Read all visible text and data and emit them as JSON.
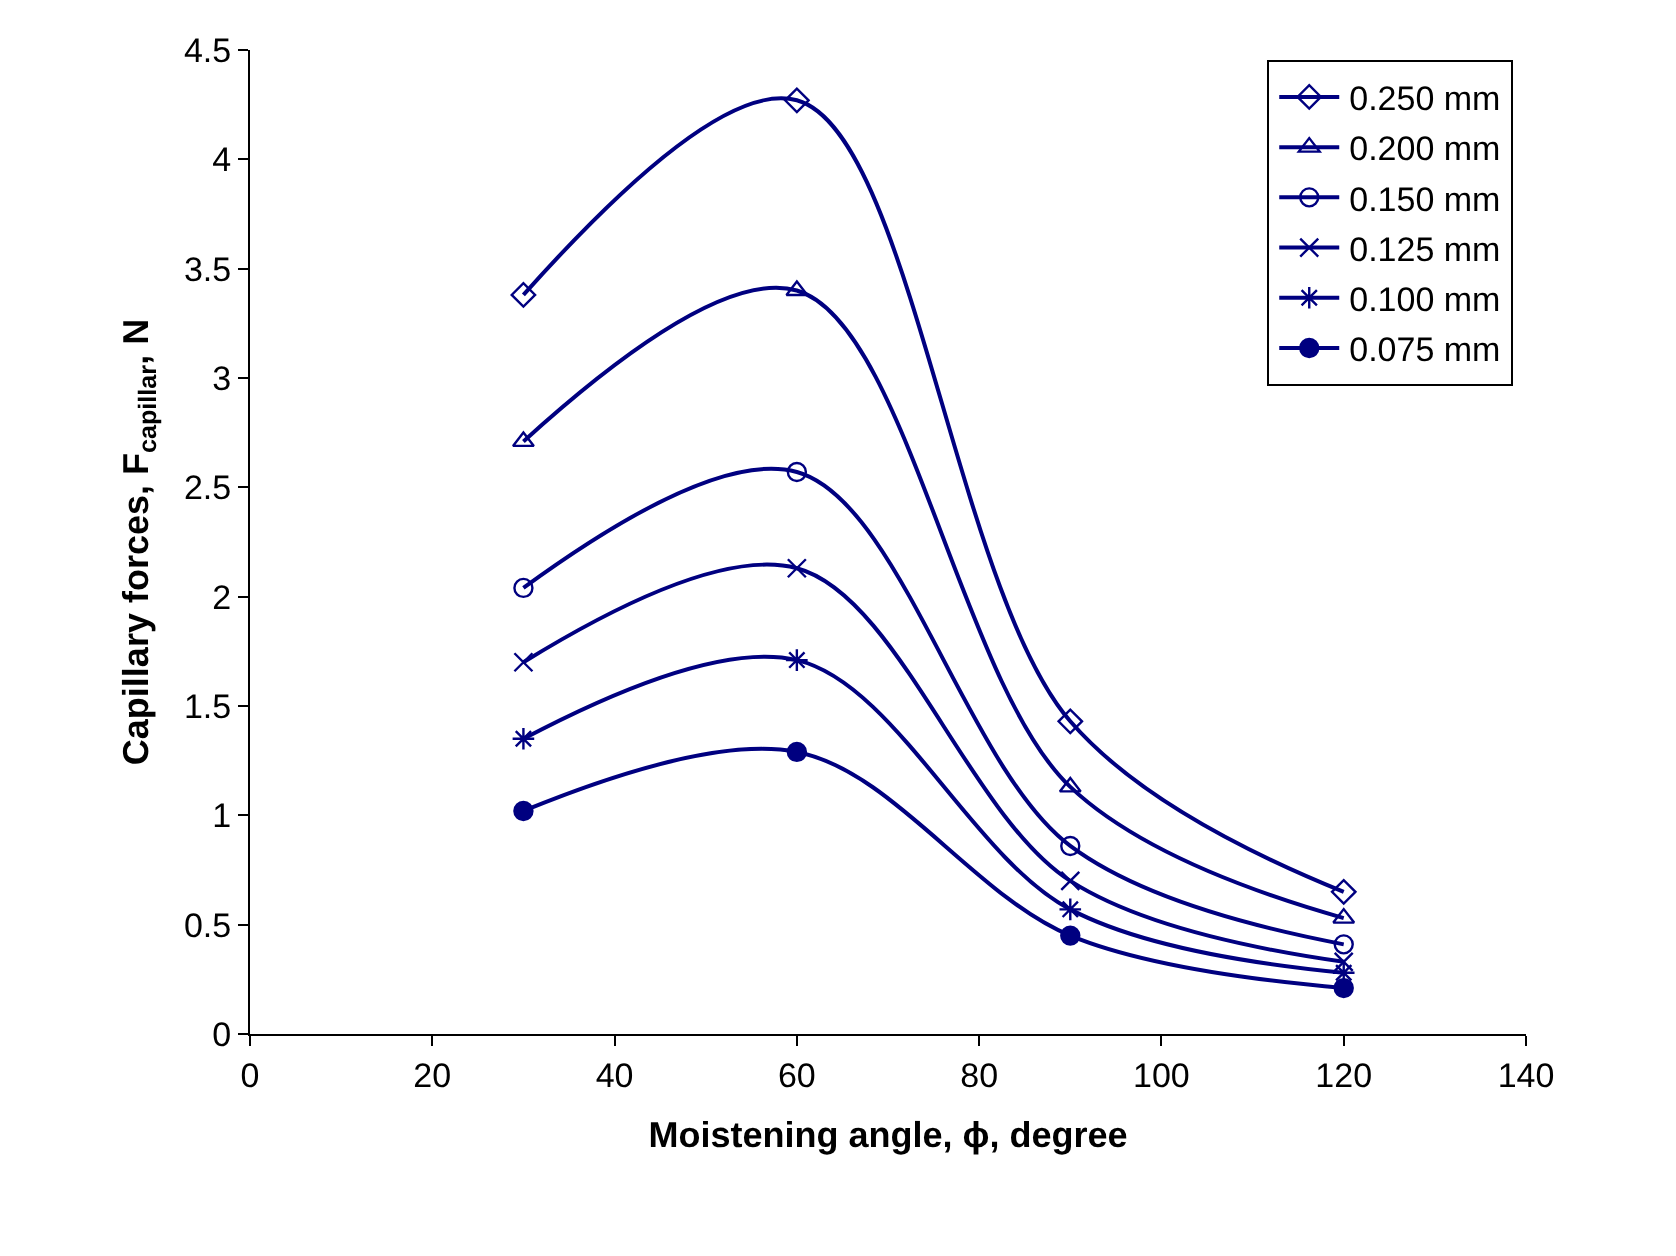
{
  "chart_data": {
    "type": "line",
    "xlabel": "Moistening angle, ϕ, degree",
    "ylabel": "Capillary forces, F$_{capillar}$, N",
    "x": [
      30,
      60,
      90,
      120
    ],
    "series": [
      {
        "name": "0.250 mm",
        "color": "#000080",
        "marker": "diamond",
        "values": [
          3.38,
          4.27,
          1.43,
          0.65
        ]
      },
      {
        "name": "0.200 mm",
        "color": "#000080",
        "marker": "triangle",
        "values": [
          2.71,
          3.4,
          1.13,
          0.53
        ]
      },
      {
        "name": "0.150 mm",
        "color": "#000080",
        "marker": "circle",
        "values": [
          2.04,
          2.57,
          0.86,
          0.41
        ]
      },
      {
        "name": "0.125 mm",
        "color": "#000080",
        "marker": "cross",
        "values": [
          1.7,
          2.13,
          0.7,
          0.33
        ]
      },
      {
        "name": "0.100 mm",
        "color": "#000080",
        "marker": "cross",
        "values": [
          1.35,
          1.71,
          0.57,
          0.28
        ]
      },
      {
        "name": "0.075 mm",
        "color": "#000080",
        "marker": "circle",
        "values": [
          1.02,
          1.29,
          0.45,
          0.21
        ]
      }
    ],
    "xlim": [
      0,
      140
    ],
    "xticks": [
      0,
      20,
      40,
      60,
      80,
      100,
      120,
      140
    ],
    "ylim": [
      0,
      4.5
    ],
    "yticks": [
      0,
      0.5,
      1,
      1.5,
      2,
      2.5,
      3,
      3.5,
      4,
      4.5
    ],
    "grid": false,
    "legend": "top right",
    "line_style": "solid"
  }
}
